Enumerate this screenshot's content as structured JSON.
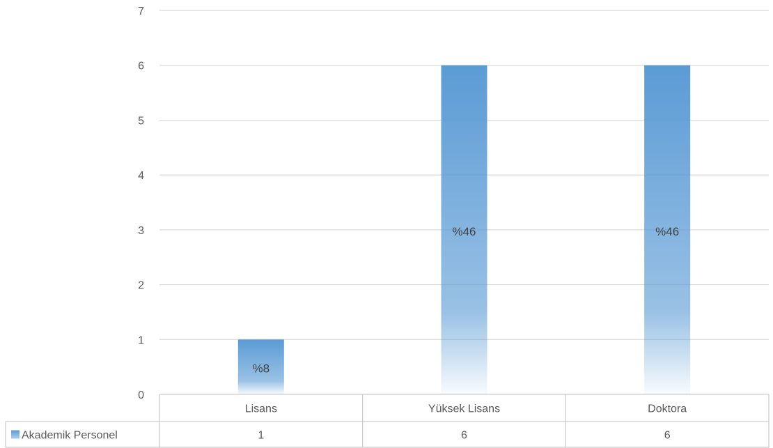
{
  "chart_data": {
    "type": "bar",
    "categories": [
      "Lisans",
      "Yüksek Lisans",
      "Doktora"
    ],
    "series": [
      {
        "name": "Akademik Personel",
        "values": [
          1,
          6,
          6
        ],
        "data_labels": [
          "%8",
          "%46",
          "%46"
        ],
        "color": "#5b9bd5"
      }
    ],
    "ylim": [
      0,
      7
    ],
    "yticks": [
      0,
      1,
      2,
      3,
      4,
      5,
      6,
      7
    ],
    "grid": true,
    "legend": "data-table",
    "data_table": true
  }
}
